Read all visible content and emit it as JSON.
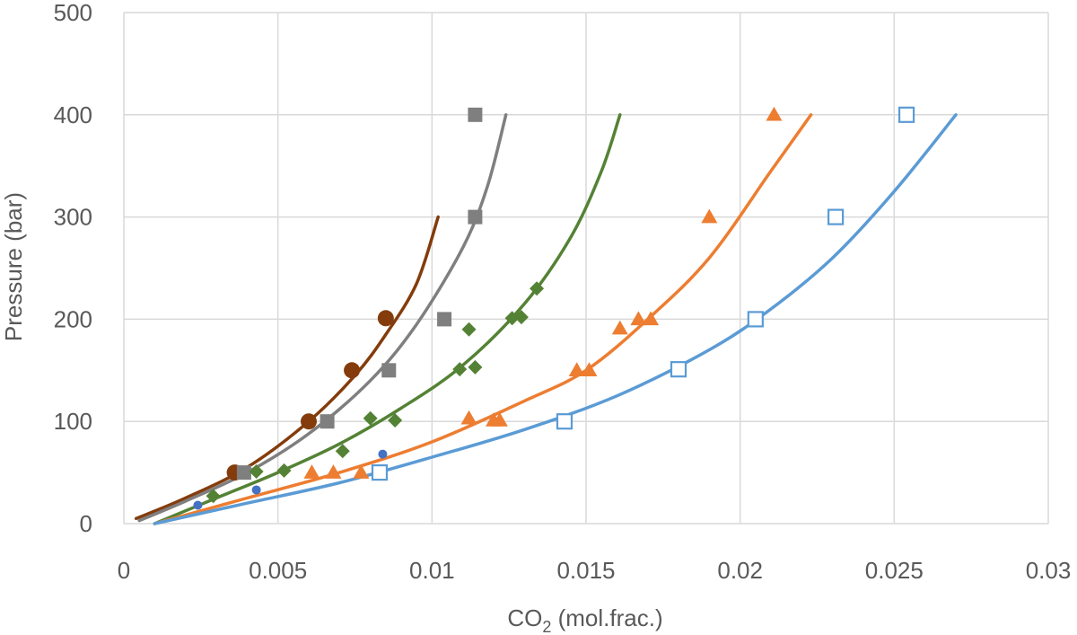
{
  "chart_data": {
    "type": "scatter",
    "xlabel": "CO",
    "xlabel_sub": "2",
    "xlabel_suffix": " (mol.frac.)",
    "ylabel": "Pressure (bar)",
    "xlim": [
      0,
      0.03
    ],
    "ylim": [
      0,
      500
    ],
    "x_ticks": [
      "0",
      "0.005",
      "0.01",
      "0.015",
      "0.02",
      "0.025",
      "0.03"
    ],
    "y_ticks": [
      "0",
      "100",
      "200",
      "300",
      "400",
      "500"
    ],
    "grid": true,
    "legend": "none",
    "scatter_series": [
      {
        "marker": "circle",
        "color": "#843c0c",
        "size": 9,
        "points": [
          [
            0.0036,
            50
          ],
          [
            0.006,
            100
          ],
          [
            0.0074,
            150
          ],
          [
            0.0085,
            201
          ]
        ]
      },
      {
        "marker": "square",
        "color": "#7f7f7f",
        "size": 8,
        "points": [
          [
            0.0039,
            50
          ],
          [
            0.0066,
            100
          ],
          [
            0.0086,
            150
          ],
          [
            0.0104,
            200
          ],
          [
            0.0114,
            300
          ],
          [
            0.0114,
            400
          ]
        ]
      },
      {
        "marker": "diamond",
        "color": "#548235",
        "size": 8,
        "points": [
          [
            0.0029,
            27
          ],
          [
            0.0043,
            51
          ],
          [
            0.0052,
            52
          ],
          [
            0.0071,
            71
          ],
          [
            0.008,
            103
          ],
          [
            0.0088,
            101
          ],
          [
            0.0109,
            151
          ],
          [
            0.0112,
            190
          ],
          [
            0.0114,
            153
          ],
          [
            0.0126,
            201
          ],
          [
            0.0129,
            202
          ],
          [
            0.0134,
            230
          ]
        ]
      },
      {
        "marker": "triangle",
        "color": "#ed7d31",
        "size": 9,
        "points": [
          [
            0.0061,
            50
          ],
          [
            0.0068,
            50
          ],
          [
            0.0077,
            50
          ],
          [
            0.0112,
            103
          ],
          [
            0.012,
            101
          ],
          [
            0.0122,
            101
          ],
          [
            0.0147,
            150
          ],
          [
            0.0151,
            150
          ],
          [
            0.0161,
            191
          ],
          [
            0.0167,
            200
          ],
          [
            0.0171,
            200
          ],
          [
            0.019,
            300
          ],
          [
            0.0211,
            400
          ]
        ]
      },
      {
        "marker": "square-open",
        "color": "#5b9bd5",
        "size": 8,
        "points": [
          [
            0.0083,
            50
          ],
          [
            0.0143,
            100
          ],
          [
            0.018,
            151
          ],
          [
            0.0205,
            200
          ],
          [
            0.0231,
            300
          ],
          [
            0.0254,
            400
          ]
        ]
      },
      {
        "marker": "circle-small",
        "color": "#4472c4",
        "size": 5,
        "points": [
          [
            0.0024,
            18
          ],
          [
            0.0043,
            33
          ],
          [
            0.0084,
            68
          ]
        ]
      }
    ],
    "line_series": [
      {
        "color": "#843c0c",
        "points": [
          [
            0.0004,
            5
          ],
          [
            0.002,
            25
          ],
          [
            0.004,
            55
          ],
          [
            0.006,
            100
          ],
          [
            0.0075,
            145
          ],
          [
            0.0085,
            185
          ],
          [
            0.0095,
            235
          ],
          [
            0.0102,
            300
          ]
        ]
      },
      {
        "color": "#7f7f7f",
        "points": [
          [
            0.0005,
            3
          ],
          [
            0.002,
            22
          ],
          [
            0.004,
            50
          ],
          [
            0.006,
            88
          ],
          [
            0.008,
            140
          ],
          [
            0.0095,
            195
          ],
          [
            0.011,
            270
          ],
          [
            0.0118,
            330
          ],
          [
            0.0124,
            400
          ]
        ]
      },
      {
        "color": "#548235",
        "points": [
          [
            0.001,
            0
          ],
          [
            0.003,
            25
          ],
          [
            0.005,
            50
          ],
          [
            0.007,
            78
          ],
          [
            0.009,
            113
          ],
          [
            0.011,
            155
          ],
          [
            0.013,
            215
          ],
          [
            0.0145,
            280
          ],
          [
            0.0155,
            345
          ],
          [
            0.0161,
            400
          ]
        ]
      },
      {
        "color": "#ed7d31",
        "points": [
          [
            0.001,
            0
          ],
          [
            0.004,
            25
          ],
          [
            0.007,
            50
          ],
          [
            0.01,
            80
          ],
          [
            0.013,
            120
          ],
          [
            0.015,
            150
          ],
          [
            0.017,
            200
          ],
          [
            0.019,
            260
          ],
          [
            0.021,
            345
          ],
          [
            0.0223,
            400
          ]
        ]
      },
      {
        "color": "#5b9bd5",
        "points": [
          [
            0.001,
            0
          ],
          [
            0.004,
            20
          ],
          [
            0.007,
            40
          ],
          [
            0.01,
            65
          ],
          [
            0.013,
            92
          ],
          [
            0.016,
            125
          ],
          [
            0.019,
            170
          ],
          [
            0.021,
            210
          ],
          [
            0.023,
            260
          ],
          [
            0.025,
            325
          ],
          [
            0.027,
            400
          ]
        ]
      }
    ]
  }
}
